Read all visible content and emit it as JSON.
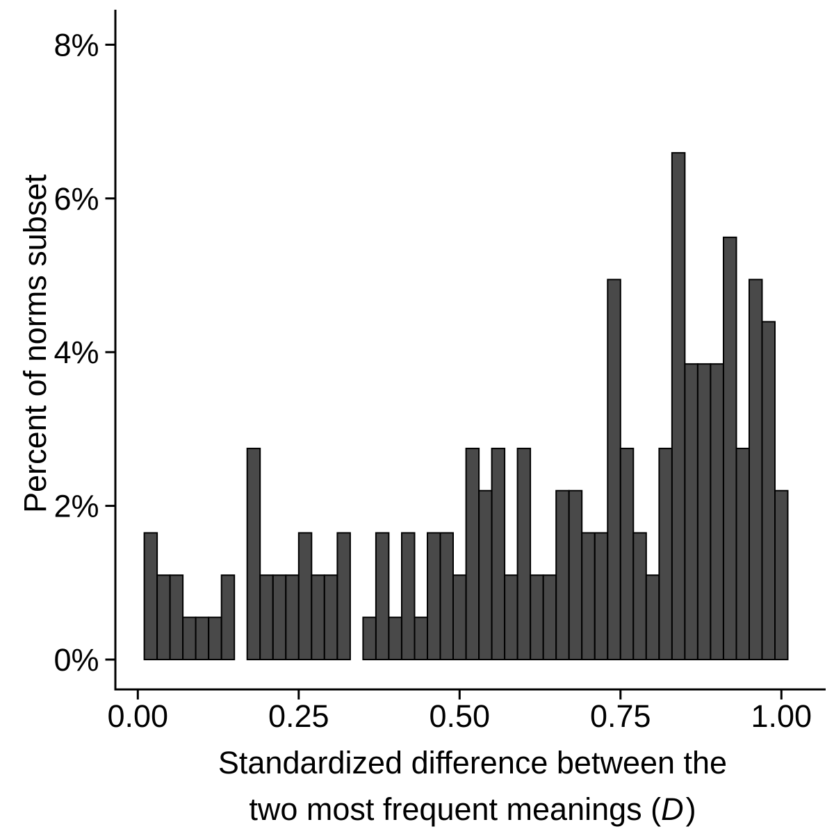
{
  "figure": {
    "background": "#ffffff",
    "bar_fill": "#494949",
    "bar_stroke": "#000000",
    "axis_color": "#000000",
    "text_color": "#000000"
  },
  "chart_data": {
    "type": "bar",
    "subtype": "histogram",
    "title": "",
    "xlabel_line1": "Standardized difference between the",
    "xlabel_line2_pre": "two most frequent meanings (",
    "xlabel_line2_italic": "D",
    "xlabel_line2_post": ")",
    "ylabel": "Percent of norms subset",
    "x_tick_labels": [
      "0.00",
      "0.25",
      "0.50",
      "0.75",
      "1.00"
    ],
    "x_tick_values": [
      0.0,
      0.25,
      0.5,
      0.75,
      1.0
    ],
    "y_tick_labels": [
      "0%",
      "2%",
      "4%",
      "6%",
      "8%"
    ],
    "y_tick_values": [
      0,
      2,
      4,
      6,
      8
    ],
    "xlim": [
      -0.04,
      1.07
    ],
    "ylim": [
      0,
      8.4
    ],
    "grid": "off",
    "legend": "none",
    "binwidth": 0.02,
    "bin_start": 0.01,
    "total_n": 182,
    "bin_centers": [
      0.02,
      0.04,
      0.06,
      0.08,
      0.1,
      0.12,
      0.14,
      0.16,
      0.18,
      0.2,
      0.22,
      0.24,
      0.26,
      0.28,
      0.3,
      0.32,
      0.34,
      0.36,
      0.38,
      0.4,
      0.42,
      0.44,
      0.46,
      0.48,
      0.5,
      0.52,
      0.54,
      0.56,
      0.58,
      0.6,
      0.62,
      0.64,
      0.66,
      0.68,
      0.7,
      0.72,
      0.74,
      0.76,
      0.78,
      0.8,
      0.82,
      0.84,
      0.86,
      0.88,
      0.9,
      0.92,
      0.94,
      0.96,
      0.98,
      1.0
    ],
    "counts": [
      3,
      2,
      2,
      1,
      1,
      1,
      2,
      0,
      5,
      2,
      2,
      2,
      3,
      2,
      2,
      3,
      0,
      1,
      3,
      1,
      3,
      1,
      3,
      3,
      2,
      5,
      4,
      5,
      2,
      5,
      2,
      2,
      4,
      4,
      3,
      3,
      9,
      5,
      3,
      2,
      5,
      12,
      7,
      7,
      7,
      10,
      5,
      9,
      8,
      4
    ],
    "values_percent": [
      1.65,
      1.1,
      1.1,
      0.55,
      0.55,
      0.55,
      1.1,
      0.0,
      2.75,
      1.1,
      1.1,
      1.1,
      1.65,
      1.1,
      1.1,
      1.65,
      0.0,
      0.55,
      1.65,
      0.55,
      1.65,
      0.55,
      1.65,
      1.65,
      1.1,
      2.75,
      2.2,
      2.75,
      1.1,
      2.75,
      1.1,
      1.1,
      2.2,
      2.2,
      1.65,
      1.65,
      4.95,
      2.75,
      1.65,
      1.1,
      2.75,
      6.59,
      3.85,
      3.85,
      3.85,
      5.49,
      2.75,
      4.95,
      4.4,
      2.2
    ]
  }
}
